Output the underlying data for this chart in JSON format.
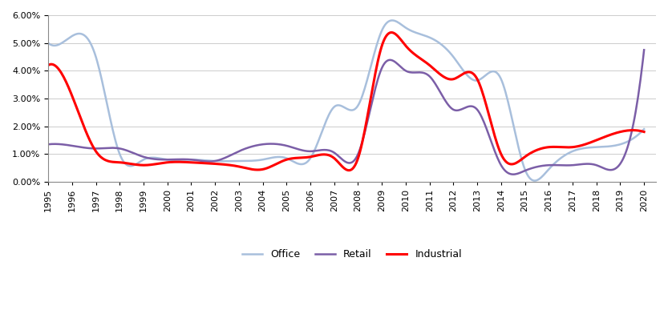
{
  "title": "",
  "years": [
    1995,
    1996,
    1997,
    1998,
    1999,
    2000,
    2001,
    2002,
    2003,
    2004,
    2005,
    2006,
    2007,
    2008,
    2009,
    2010,
    2011,
    2012,
    2013,
    2014,
    2015,
    2016,
    2017,
    2018,
    2019,
    2020
  ],
  "retail": [
    1.35,
    1.3,
    1.2,
    1.2,
    0.9,
    0.8,
    0.8,
    0.75,
    1.1,
    1.35,
    1.3,
    1.1,
    1.05,
    1.0,
    4.1,
    4.0,
    3.8,
    2.6,
    2.6,
    0.6,
    0.4,
    0.6,
    0.6,
    0.6,
    0.65,
    4.75
  ],
  "office": [
    5.0,
    5.25,
    4.5,
    1.0,
    0.8,
    0.8,
    0.8,
    0.75,
    0.75,
    0.8,
    0.85,
    0.85,
    2.7,
    2.75,
    5.45,
    5.55,
    5.2,
    4.5,
    3.65,
    3.7,
    0.45,
    0.45,
    1.1,
    1.25,
    1.35,
    1.9
  ],
  "industrial": [
    4.2,
    3.1,
    1.1,
    0.7,
    0.6,
    0.7,
    0.7,
    0.65,
    0.55,
    0.45,
    0.8,
    0.9,
    0.85,
    0.85,
    4.9,
    4.9,
    4.2,
    3.7,
    3.7,
    1.0,
    0.9,
    1.25,
    1.25,
    1.5,
    1.8,
    1.8
  ],
  "retail_color": "#7b5ea7",
  "office_color": "#a8bfdc",
  "industrial_color": "#ff0000",
  "ylim": [
    0.0,
    0.06
  ],
  "yticks": [
    0.0,
    0.01,
    0.02,
    0.03,
    0.04,
    0.05,
    0.06
  ],
  "legend_labels": [
    "Retail",
    "Office",
    "Industrial"
  ],
  "background_color": "#ffffff",
  "grid_color": "#cccccc"
}
